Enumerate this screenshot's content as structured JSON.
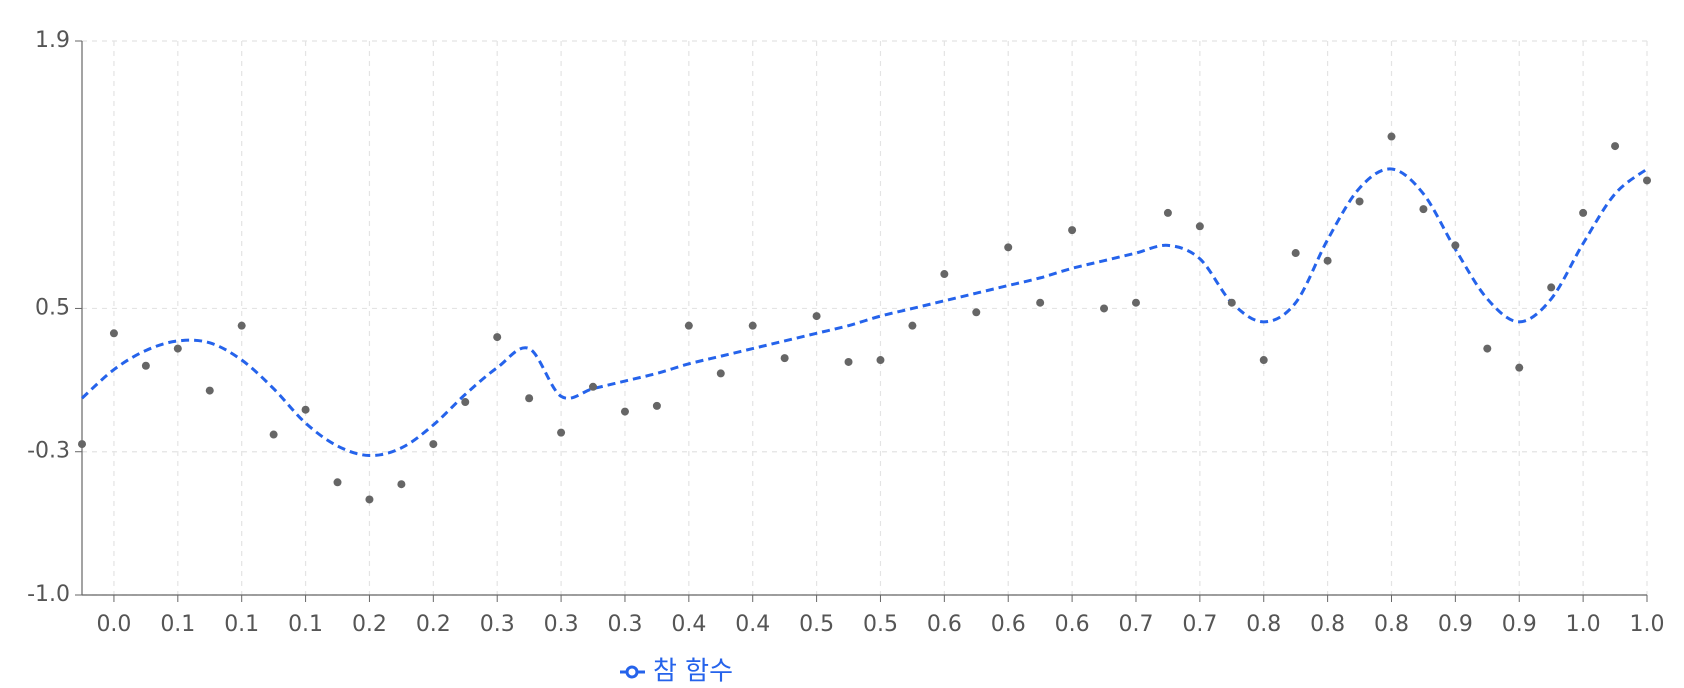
{
  "chart_data": {
    "type": "line",
    "categories": [
      null,
      "0.0",
      null,
      "0.1",
      null,
      "0.1",
      null,
      "0.1",
      null,
      "0.2",
      null,
      "0.2",
      null,
      "0.3",
      null,
      "0.3",
      null,
      "0.3",
      null,
      "0.4",
      null,
      "0.4",
      null,
      "0.5",
      null,
      "0.5",
      null,
      "0.6",
      null,
      "0.6",
      null,
      "0.6",
      null,
      "0.7",
      null,
      "0.7",
      null,
      "0.8",
      null,
      "0.8",
      null,
      "0.8",
      null,
      "0.9",
      null,
      "0.9",
      null,
      "1.0",
      null,
      "1.0"
    ],
    "series": [
      {
        "name": "참 함수",
        "color": "#2563eb",
        "dashed": true,
        "values": [
          0.03,
          0.18,
          0.28,
          0.33,
          0.32,
          0.23,
          0.08,
          -0.1,
          -0.22,
          -0.27,
          -0.23,
          -0.11,
          0.05,
          0.19,
          0.29,
          0.04,
          0.08,
          0.12,
          0.16,
          0.21,
          0.25,
          0.29,
          0.33,
          0.37,
          0.41,
          0.46,
          0.5,
          0.54,
          0.58,
          0.62,
          0.66,
          0.71,
          0.75,
          0.79,
          0.83,
          0.76,
          0.53,
          0.43,
          0.53,
          0.86,
          1.13,
          1.23,
          1.1,
          0.81,
          0.55,
          0.43,
          0.55,
          0.84,
          1.1,
          1.23
        ]
      },
      {
        "type": "scatter",
        "color": "#666666",
        "values": [
          -0.21,
          0.37,
          0.2,
          0.29,
          0.07,
          0.41,
          -0.16,
          -0.03,
          -0.41,
          -0.5,
          -0.42,
          -0.21,
          0.01,
          0.35,
          0.03,
          -0.15,
          0.09,
          -0.04,
          -0.01,
          0.41,
          0.16,
          0.41,
          0.24,
          0.46,
          0.22,
          0.23,
          0.41,
          0.68,
          0.48,
          0.82,
          0.53,
          0.91,
          0.5,
          0.53,
          1.0,
          0.93,
          0.53,
          0.23,
          0.79,
          0.75,
          1.06,
          1.4,
          1.02,
          0.83,
          0.29,
          0.19,
          0.61,
          1.0,
          1.35,
          1.17
        ]
      }
    ],
    "ylim": [
      -1,
      1.9
    ],
    "yticks": [
      {
        "value": -1,
        "label": "-1.0"
      },
      {
        "value": -0.25,
        "label": "-0.3"
      },
      0.5,
      1.9
    ],
    "grid": true,
    "legend": "bottom"
  }
}
